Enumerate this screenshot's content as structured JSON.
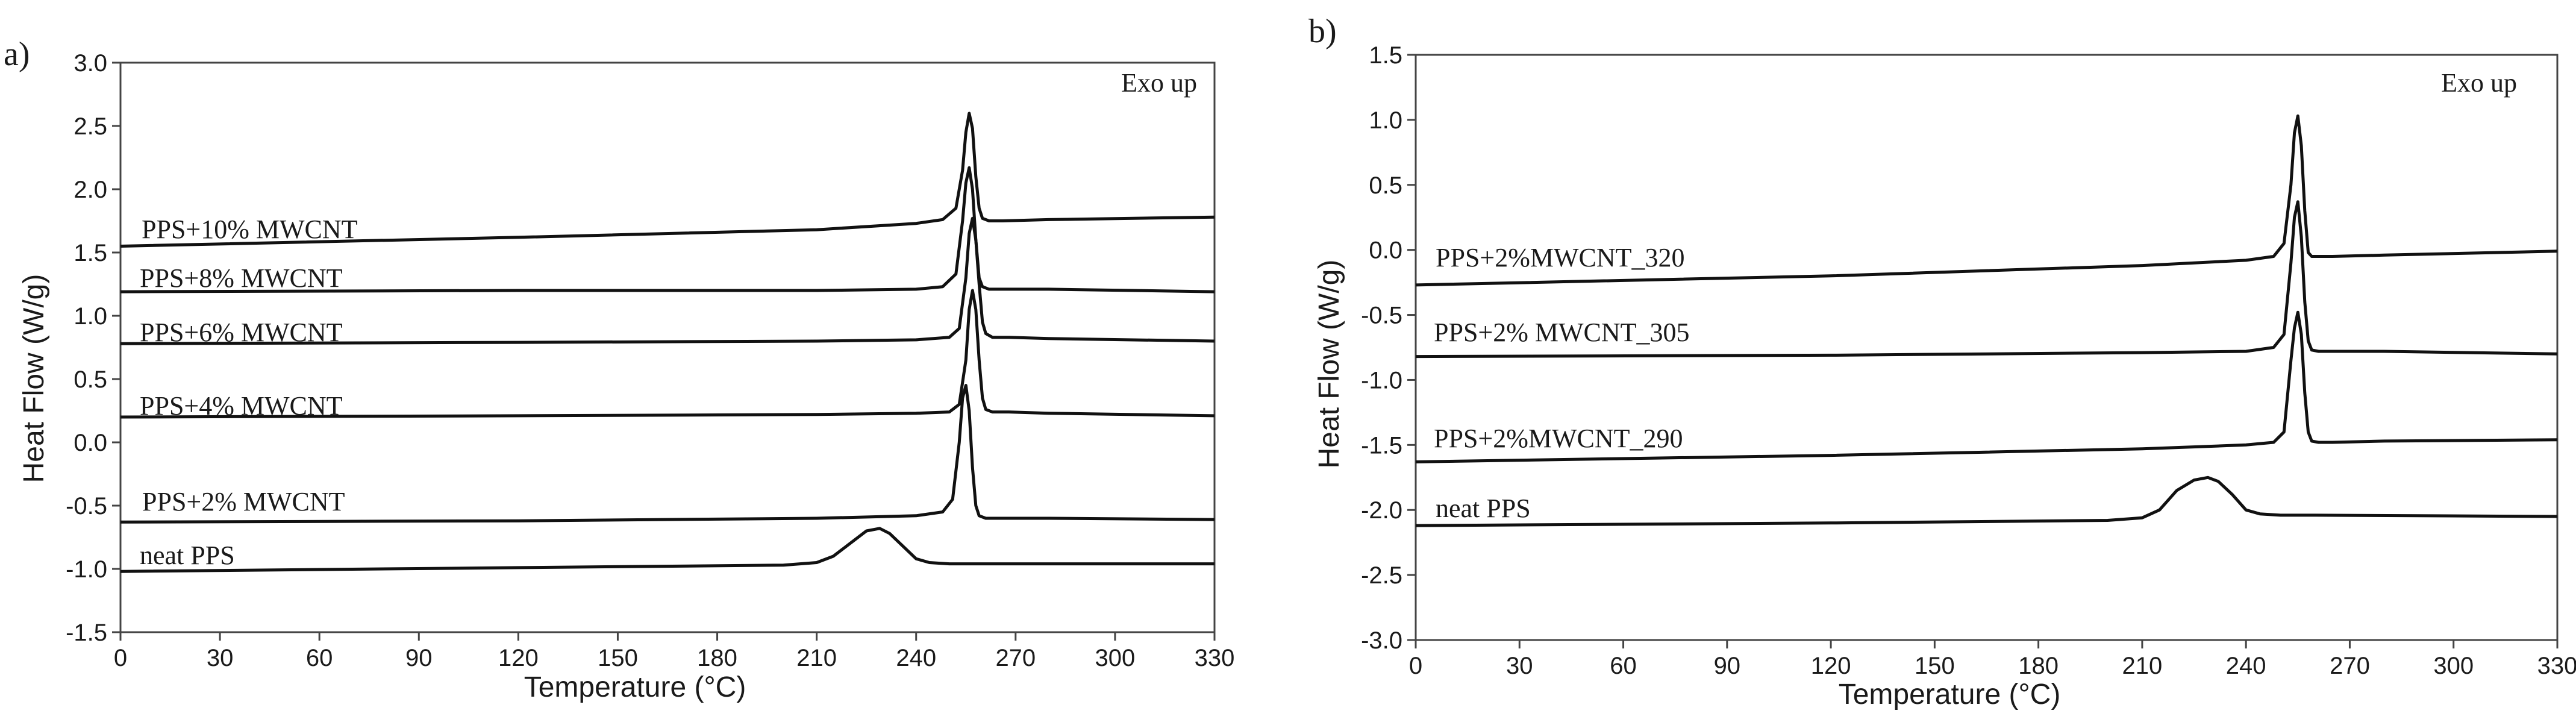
{
  "chart_data": [
    {
      "type": "line",
      "panel_label": "a)",
      "annotation": "Exo up",
      "xlabel": "Temperature (°C)",
      "ylabel": "Heat Flow (W/g)",
      "xlim": [
        0,
        330
      ],
      "ylim": [
        -1.5,
        3.0
      ],
      "xticks": [
        "0",
        "30",
        "60",
        "90",
        "120",
        "150",
        "180",
        "210",
        "240",
        "270",
        "300",
        "330"
      ],
      "yticks": [
        "-1.5",
        "-1.0",
        "-0.5",
        "0.0",
        "0.5",
        "1.0",
        "1.5",
        "2.0",
        "2.5",
        "3.0"
      ],
      "grid": false,
      "series": [
        {
          "name": "PPS+10% MWCNT",
          "x": [
            0,
            120,
            210,
            240,
            248,
            252,
            254,
            255,
            256,
            257,
            258,
            259,
            260,
            262,
            266,
            280,
            330
          ],
          "y": [
            1.55,
            1.62,
            1.68,
            1.73,
            1.76,
            1.85,
            2.15,
            2.45,
            2.6,
            2.48,
            2.1,
            1.85,
            1.77,
            1.75,
            1.75,
            1.76,
            1.78
          ]
        },
        {
          "name": "PPS+8% MWCNT",
          "x": [
            0,
            120,
            210,
            240,
            248,
            252,
            254,
            255,
            256,
            257,
            258,
            259,
            260,
            262,
            266,
            280,
            330
          ],
          "y": [
            1.19,
            1.2,
            1.2,
            1.21,
            1.23,
            1.33,
            1.75,
            2.05,
            2.17,
            2.0,
            1.6,
            1.3,
            1.23,
            1.21,
            1.21,
            1.21,
            1.19
          ]
        },
        {
          "name": "PPS+6% MWCNT",
          "x": [
            0,
            120,
            210,
            240,
            250,
            253,
            255,
            256,
            257,
            258,
            259,
            260,
            261,
            263,
            268,
            280,
            330
          ],
          "y": [
            0.78,
            0.79,
            0.8,
            0.81,
            0.83,
            0.9,
            1.3,
            1.65,
            1.77,
            1.6,
            1.25,
            0.95,
            0.86,
            0.83,
            0.83,
            0.82,
            0.8
          ]
        },
        {
          "name": "PPS+4% MWCNT",
          "x": [
            0,
            120,
            210,
            240,
            250,
            253,
            255,
            256,
            257,
            258,
            259,
            260,
            261,
            263,
            268,
            280,
            330
          ],
          "y": [
            0.2,
            0.21,
            0.22,
            0.23,
            0.24,
            0.3,
            0.65,
            1.05,
            1.2,
            1.05,
            0.65,
            0.35,
            0.26,
            0.24,
            0.24,
            0.23,
            0.21
          ]
        },
        {
          "name": "PPS+2% MWCNT",
          "x": [
            0,
            120,
            210,
            240,
            248,
            251,
            253,
            254,
            255,
            256,
            257,
            258,
            259,
            261,
            265,
            280,
            330
          ],
          "y": [
            -0.63,
            -0.62,
            -0.6,
            -0.58,
            -0.55,
            -0.45,
            0.0,
            0.35,
            0.45,
            0.25,
            -0.2,
            -0.5,
            -0.58,
            -0.6,
            -0.6,
            -0.6,
            -0.61
          ]
        },
        {
          "name": "neat PPS",
          "x": [
            0,
            120,
            200,
            210,
            215,
            220,
            225,
            229,
            232,
            236,
            240,
            244,
            250,
            260,
            330
          ],
          "y": [
            -1.02,
            -0.99,
            -0.97,
            -0.95,
            -0.9,
            -0.8,
            -0.7,
            -0.68,
            -0.72,
            -0.82,
            -0.92,
            -0.95,
            -0.96,
            -0.96,
            -0.96
          ]
        }
      ]
    },
    {
      "type": "line",
      "panel_label": "b)",
      "annotation": "Exo up",
      "xlabel": "Temperature (°C)",
      "ylabel": "Heat Flow (W/g)",
      "xlim": [
        0,
        330
      ],
      "ylim": [
        -3.0,
        1.5
      ],
      "xticks": [
        "0",
        "30",
        "60",
        "90",
        "120",
        "150",
        "180",
        "210",
        "240",
        "270",
        "300",
        "330"
      ],
      "yticks": [
        "-3.0",
        "-2.5",
        "-2.0",
        "-1.5",
        "-1.0",
        "-0.5",
        "0.0",
        "0.5",
        "1.0",
        "1.5"
      ],
      "grid": false,
      "series": [
        {
          "name": "PPS+2%MWCNT_320",
          "x": [
            0,
            120,
            210,
            240,
            248,
            251,
            253,
            254,
            255,
            256,
            257,
            258,
            259,
            261,
            265,
            280,
            330
          ],
          "y": [
            -0.27,
            -0.2,
            -0.12,
            -0.08,
            -0.05,
            0.05,
            0.5,
            0.9,
            1.03,
            0.8,
            0.3,
            -0.02,
            -0.05,
            -0.05,
            -0.05,
            -0.04,
            -0.01
          ]
        },
        {
          "name": "PPS+2% MWCNT_305",
          "x": [
            0,
            120,
            210,
            240,
            248,
            251,
            253,
            254,
            255,
            256,
            257,
            258,
            259,
            261,
            265,
            280,
            330
          ],
          "y": [
            -0.82,
            -0.81,
            -0.79,
            -0.78,
            -0.75,
            -0.65,
            -0.1,
            0.25,
            0.37,
            0.1,
            -0.4,
            -0.7,
            -0.77,
            -0.78,
            -0.78,
            -0.78,
            -0.8
          ]
        },
        {
          "name": "PPS+2%MWCNT_290",
          "x": [
            0,
            120,
            210,
            240,
            248,
            251,
            253,
            254,
            255,
            256,
            257,
            258,
            259,
            261,
            265,
            280,
            330
          ],
          "y": [
            -1.63,
            -1.58,
            -1.53,
            -1.5,
            -1.48,
            -1.4,
            -0.85,
            -0.6,
            -0.48,
            -0.65,
            -1.1,
            -1.4,
            -1.47,
            -1.48,
            -1.48,
            -1.47,
            -1.46
          ]
        },
        {
          "name": "neat PPS",
          "x": [
            0,
            120,
            200,
            210,
            215,
            220,
            225,
            229,
            232,
            236,
            240,
            244,
            250,
            260,
            330
          ],
          "y": [
            -2.12,
            -2.1,
            -2.08,
            -2.06,
            -2.0,
            -1.85,
            -1.77,
            -1.75,
            -1.78,
            -1.88,
            -2.0,
            -2.03,
            -2.04,
            -2.04,
            -2.05
          ]
        }
      ]
    }
  ]
}
